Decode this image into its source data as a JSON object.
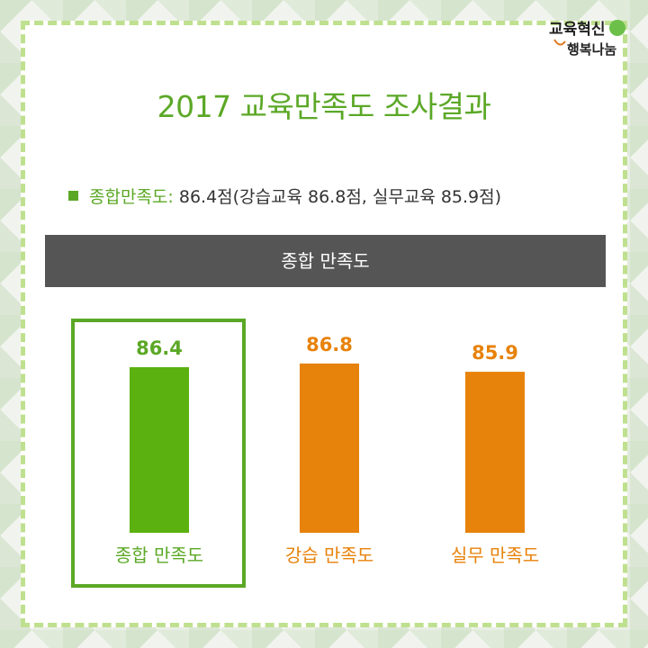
{
  "logo": {
    "text": "교육혁신 행복나눔"
  },
  "title": "2017 교육만족도 조사결과",
  "summary": {
    "label": "종합만족도:",
    "text": " 86.4점(강습교육 86.8점, 실무교육 85.9점)"
  },
  "section_header": "종합 만족도",
  "colors": {
    "accent": "#5ba826",
    "highlight_bar": "#5bb10f",
    "other_bar": "#e7820a",
    "header_bg": "#555555"
  },
  "chart_data": {
    "type": "bar",
    "categories": [
      "종합 만족도",
      "강습 만족도",
      "실무 만족도"
    ],
    "values": [
      86.4,
      86.8,
      85.9
    ],
    "value_labels": [
      "86.4",
      "86.8",
      "85.9"
    ],
    "highlighted_index": 0,
    "title": "",
    "xlabel": "",
    "ylabel": "",
    "grid": false
  }
}
